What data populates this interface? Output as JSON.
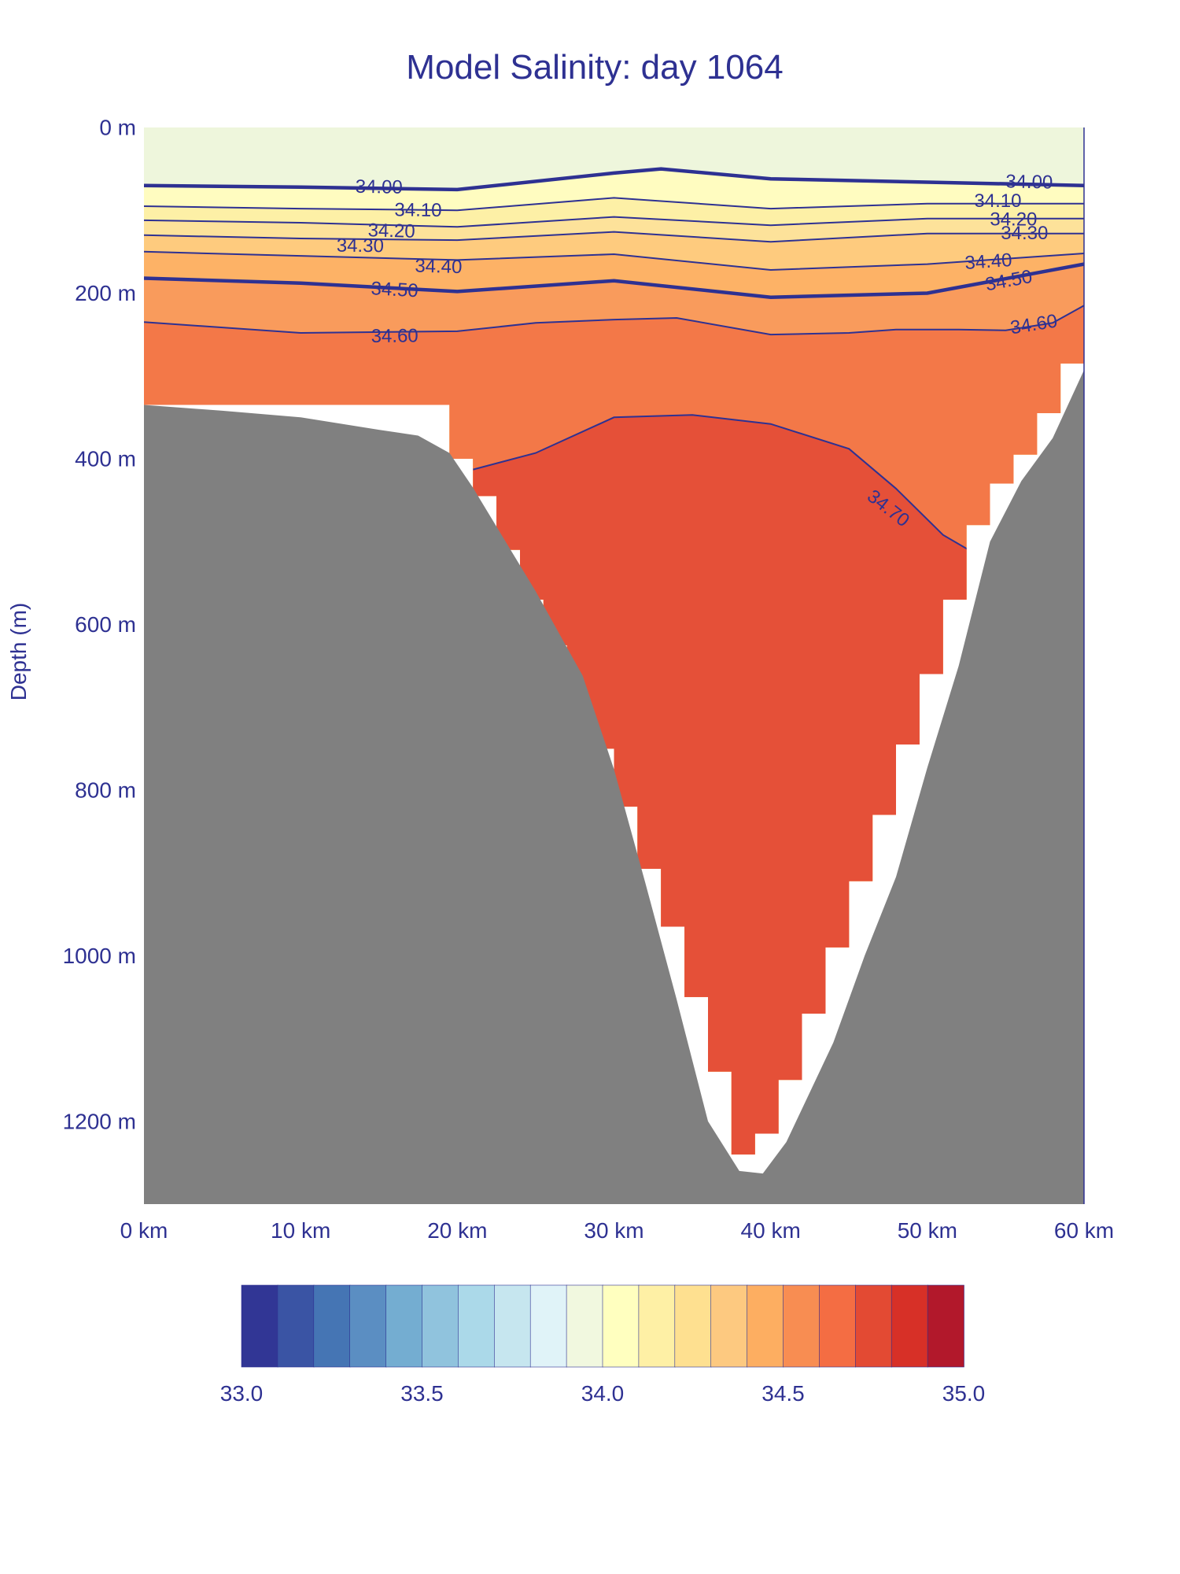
{
  "chart_data": {
    "type": "contour-section",
    "title": "Model Salinity: day 1064",
    "xlabel": "",
    "ylabel": "Depth (m)",
    "xlim": [
      0,
      60
    ],
    "ylim": [
      0,
      1300
    ],
    "x_ticks": [
      {
        "value": 0,
        "label": "0 km"
      },
      {
        "value": 10,
        "label": "10 km"
      },
      {
        "value": 20,
        "label": "20 km"
      },
      {
        "value": 30,
        "label": "30 km"
      },
      {
        "value": 40,
        "label": "40 km"
      },
      {
        "value": 50,
        "label": "50 km"
      },
      {
        "value": 60,
        "label": "60 km"
      }
    ],
    "y_ticks": [
      {
        "value": 0,
        "label": "0 m"
      },
      {
        "value": 200,
        "label": "200 m"
      },
      {
        "value": 400,
        "label": "400 m"
      },
      {
        "value": 600,
        "label": "600 m"
      },
      {
        "value": 800,
        "label": "800 m"
      },
      {
        "value": 1000,
        "label": "1000 m"
      },
      {
        "value": 1200,
        "label": "1200 m"
      }
    ],
    "colors": {
      "axis_text": "#2e3192",
      "contour_line": "#2e3192",
      "seabed": "#808080",
      "water_band_surface": "#eef6dc"
    },
    "bands": [
      {
        "color": "#fffcc0",
        "top": [
          [
            0,
            70
          ],
          [
            10,
            72
          ],
          [
            20,
            75
          ],
          [
            30,
            55
          ],
          [
            33,
            50
          ],
          [
            40,
            62
          ],
          [
            50,
            66
          ],
          [
            60,
            70
          ]
        ]
      },
      {
        "color": "#fdf0a6",
        "top": [
          [
            0,
            95
          ],
          [
            10,
            98
          ],
          [
            20,
            100
          ],
          [
            30,
            85
          ],
          [
            40,
            98
          ],
          [
            50,
            92
          ],
          [
            60,
            92
          ]
        ]
      },
      {
        "color": "#fde29a",
        "top": [
          [
            0,
            112
          ],
          [
            10,
            115
          ],
          [
            20,
            120
          ],
          [
            30,
            108
          ],
          [
            40,
            118
          ],
          [
            50,
            110
          ],
          [
            60,
            110
          ]
        ]
      },
      {
        "color": "#fecb7e",
        "top": [
          [
            0,
            130
          ],
          [
            10,
            134
          ],
          [
            20,
            136
          ],
          [
            30,
            126
          ],
          [
            40,
            138
          ],
          [
            50,
            128
          ],
          [
            60,
            128
          ]
        ]
      },
      {
        "color": "#fdb266",
        "top": [
          [
            0,
            150
          ],
          [
            10,
            155
          ],
          [
            20,
            160
          ],
          [
            30,
            153
          ],
          [
            40,
            172
          ],
          [
            50,
            165
          ],
          [
            60,
            152
          ]
        ]
      },
      {
        "color": "#f99b5c",
        "top": [
          [
            0,
            182
          ],
          [
            10,
            188
          ],
          [
            20,
            198
          ],
          [
            30,
            185
          ],
          [
            40,
            205
          ],
          [
            50,
            200
          ],
          [
            60,
            165
          ]
        ]
      },
      {
        "color": "#f37848",
        "top": [
          [
            0,
            235
          ],
          [
            10,
            248
          ],
          [
            20,
            246
          ],
          [
            25,
            236
          ],
          [
            30,
            232
          ],
          [
            34,
            230
          ],
          [
            40,
            250
          ],
          [
            45,
            248
          ],
          [
            48,
            244
          ],
          [
            52,
            244
          ],
          [
            55,
            245
          ],
          [
            58,
            236
          ],
          [
            60,
            215
          ]
        ]
      },
      {
        "color": "#e55038",
        "top": [
          [
            21,
            413
          ],
          [
            25,
            393
          ],
          [
            30,
            350
          ],
          [
            35,
            347
          ],
          [
            40,
            358
          ],
          [
            45,
            388
          ],
          [
            48,
            436
          ],
          [
            51,
            492
          ],
          [
            53,
            514
          ]
        ]
      }
    ],
    "contours": [
      {
        "label": "34.00",
        "bold": true,
        "points": [
          [
            0,
            70
          ],
          [
            10,
            72
          ],
          [
            20,
            75
          ],
          [
            30,
            55
          ],
          [
            33,
            50
          ],
          [
            40,
            62
          ],
          [
            50,
            66
          ],
          [
            60,
            70
          ]
        ],
        "label_positions": [
          [
            15,
            72
          ],
          [
            56.5,
            66
          ]
        ]
      },
      {
        "label": "34.10",
        "bold": false,
        "points": [
          [
            0,
            95
          ],
          [
            10,
            98
          ],
          [
            20,
            100
          ],
          [
            30,
            85
          ],
          [
            40,
            98
          ],
          [
            50,
            92
          ],
          [
            60,
            92
          ]
        ],
        "label_positions": [
          [
            17.5,
            100
          ],
          [
            54.5,
            89
          ]
        ]
      },
      {
        "label": "34.20",
        "bold": false,
        "points": [
          [
            0,
            112
          ],
          [
            10,
            115
          ],
          [
            20,
            120
          ],
          [
            30,
            108
          ],
          [
            40,
            118
          ],
          [
            50,
            110
          ],
          [
            60,
            110
          ]
        ],
        "label_positions": [
          [
            15.8,
            125
          ],
          [
            55.5,
            111
          ]
        ]
      },
      {
        "label": "34.30",
        "bold": false,
        "points": [
          [
            0,
            130
          ],
          [
            10,
            134
          ],
          [
            20,
            136
          ],
          [
            30,
            126
          ],
          [
            40,
            138
          ],
          [
            50,
            128
          ],
          [
            60,
            128
          ]
        ],
        "label_positions": [
          [
            13.8,
            143
          ],
          [
            56.2,
            128
          ]
        ]
      },
      {
        "label": "34.40",
        "bold": false,
        "points": [
          [
            0,
            150
          ],
          [
            10,
            155
          ],
          [
            20,
            160
          ],
          [
            30,
            153
          ],
          [
            40,
            172
          ],
          [
            50,
            165
          ],
          [
            60,
            152
          ]
        ],
        "label_positions": [
          [
            18.8,
            168
          ],
          [
            53.9,
            162
          ]
        ]
      },
      {
        "label": "34.50",
        "bold": true,
        "points": [
          [
            0,
            182
          ],
          [
            10,
            188
          ],
          [
            20,
            198
          ],
          [
            30,
            185
          ],
          [
            40,
            205
          ],
          [
            50,
            200
          ],
          [
            60,
            165
          ]
        ],
        "label_positions": [
          [
            16,
            196
          ],
          [
            55.2,
            185
          ]
        ]
      },
      {
        "label": "34.60",
        "bold": false,
        "points": [
          [
            0,
            235
          ],
          [
            10,
            248
          ],
          [
            20,
            246
          ],
          [
            25,
            236
          ],
          [
            30,
            232
          ],
          [
            34,
            230
          ],
          [
            40,
            250
          ],
          [
            45,
            248
          ],
          [
            48,
            244
          ],
          [
            52,
            244
          ],
          [
            55,
            245
          ],
          [
            58,
            236
          ],
          [
            60,
            215
          ]
        ],
        "label_positions": [
          [
            16,
            252
          ],
          [
            56.8,
            238
          ]
        ]
      },
      {
        "label": "34.70",
        "bold": false,
        "points": [
          [
            21,
            413
          ],
          [
            25,
            393
          ],
          [
            30,
            350
          ],
          [
            35,
            347
          ],
          [
            40,
            358
          ],
          [
            45,
            388
          ],
          [
            48,
            436
          ],
          [
            51,
            492
          ],
          [
            53,
            514
          ]
        ],
        "label_positions": [
          [
            47.5,
            460
          ]
        ]
      }
    ],
    "seabed_profile": [
      [
        0,
        335
      ],
      [
        5,
        342
      ],
      [
        10,
        350
      ],
      [
        15,
        365
      ],
      [
        17.5,
        372
      ],
      [
        19.5,
        393
      ],
      [
        21,
        435
      ],
      [
        25,
        560
      ],
      [
        28,
        662
      ],
      [
        30,
        775
      ],
      [
        32,
        912
      ],
      [
        34,
        1053
      ],
      [
        36,
        1200
      ],
      [
        38,
        1260
      ],
      [
        39.5,
        1263
      ],
      [
        41,
        1225
      ],
      [
        44,
        1105
      ],
      [
        46,
        1000
      ],
      [
        48,
        905
      ],
      [
        50,
        773
      ],
      [
        52,
        650
      ],
      [
        54,
        500
      ],
      [
        56,
        427
      ],
      [
        58,
        375
      ],
      [
        60,
        293
      ]
    ],
    "water_steps": [
      {
        "x0": 0,
        "x1": 19.5,
        "bottom": 335
      },
      {
        "x0": 19.5,
        "x1": 21,
        "bottom": 400
      },
      {
        "x0": 21,
        "x1": 22.5,
        "bottom": 445
      },
      {
        "x0": 22.5,
        "x1": 24,
        "bottom": 510
      },
      {
        "x0": 24,
        "x1": 25.5,
        "bottom": 570
      },
      {
        "x0": 25.5,
        "x1": 27,
        "bottom": 625
      },
      {
        "x0": 27,
        "x1": 28.5,
        "bottom": 690
      },
      {
        "x0": 28.5,
        "x1": 30,
        "bottom": 750
      },
      {
        "x0": 30,
        "x1": 31.5,
        "bottom": 820
      },
      {
        "x0": 31.5,
        "x1": 33,
        "bottom": 895
      },
      {
        "x0": 33,
        "x1": 34.5,
        "bottom": 965
      },
      {
        "x0": 34.5,
        "x1": 36,
        "bottom": 1050
      },
      {
        "x0": 36,
        "x1": 37.5,
        "bottom": 1140
      },
      {
        "x0": 37.5,
        "x1": 39,
        "bottom": 1240
      },
      {
        "x0": 39,
        "x1": 40.5,
        "bottom": 1215
      },
      {
        "x0": 40.5,
        "x1": 42,
        "bottom": 1150
      },
      {
        "x0": 42,
        "x1": 43.5,
        "bottom": 1070
      },
      {
        "x0": 43.5,
        "x1": 45,
        "bottom": 990
      },
      {
        "x0": 45,
        "x1": 46.5,
        "bottom": 910
      },
      {
        "x0": 46.5,
        "x1": 48,
        "bottom": 830
      },
      {
        "x0": 48,
        "x1": 49.5,
        "bottom": 745
      },
      {
        "x0": 49.5,
        "x1": 51,
        "bottom": 660
      },
      {
        "x0": 51,
        "x1": 52.5,
        "bottom": 570
      },
      {
        "x0": 52.5,
        "x1": 54,
        "bottom": 480
      },
      {
        "x0": 54,
        "x1": 55.5,
        "bottom": 430
      },
      {
        "x0": 55.5,
        "x1": 57,
        "bottom": 395
      },
      {
        "x0": 57,
        "x1": 58.5,
        "bottom": 345
      },
      {
        "x0": 58.5,
        "x1": 60,
        "bottom": 285
      }
    ],
    "colorbar": {
      "min": 33.0,
      "max": 35.0,
      "step": 0.1,
      "colors": [
        "#313695",
        "#3a54a4",
        "#4575b4",
        "#5b8ec2",
        "#74add1",
        "#90c3dd",
        "#abd9e9",
        "#c6e6ef",
        "#e0f3f8",
        "#f1f8df",
        "#ffffbf",
        "#fef0a5",
        "#fee090",
        "#fdc980",
        "#fdae61",
        "#f88d52",
        "#f46d43",
        "#e34a33",
        "#d73027",
        "#b2182b"
      ],
      "tick_labels": [
        {
          "value": 33.0,
          "label": "33.0"
        },
        {
          "value": 33.5,
          "label": "33.5"
        },
        {
          "value": 34.0,
          "label": "34.0"
        },
        {
          "value": 34.5,
          "label": "34.5"
        },
        {
          "value": 35.0,
          "label": "35.0"
        }
      ]
    }
  }
}
